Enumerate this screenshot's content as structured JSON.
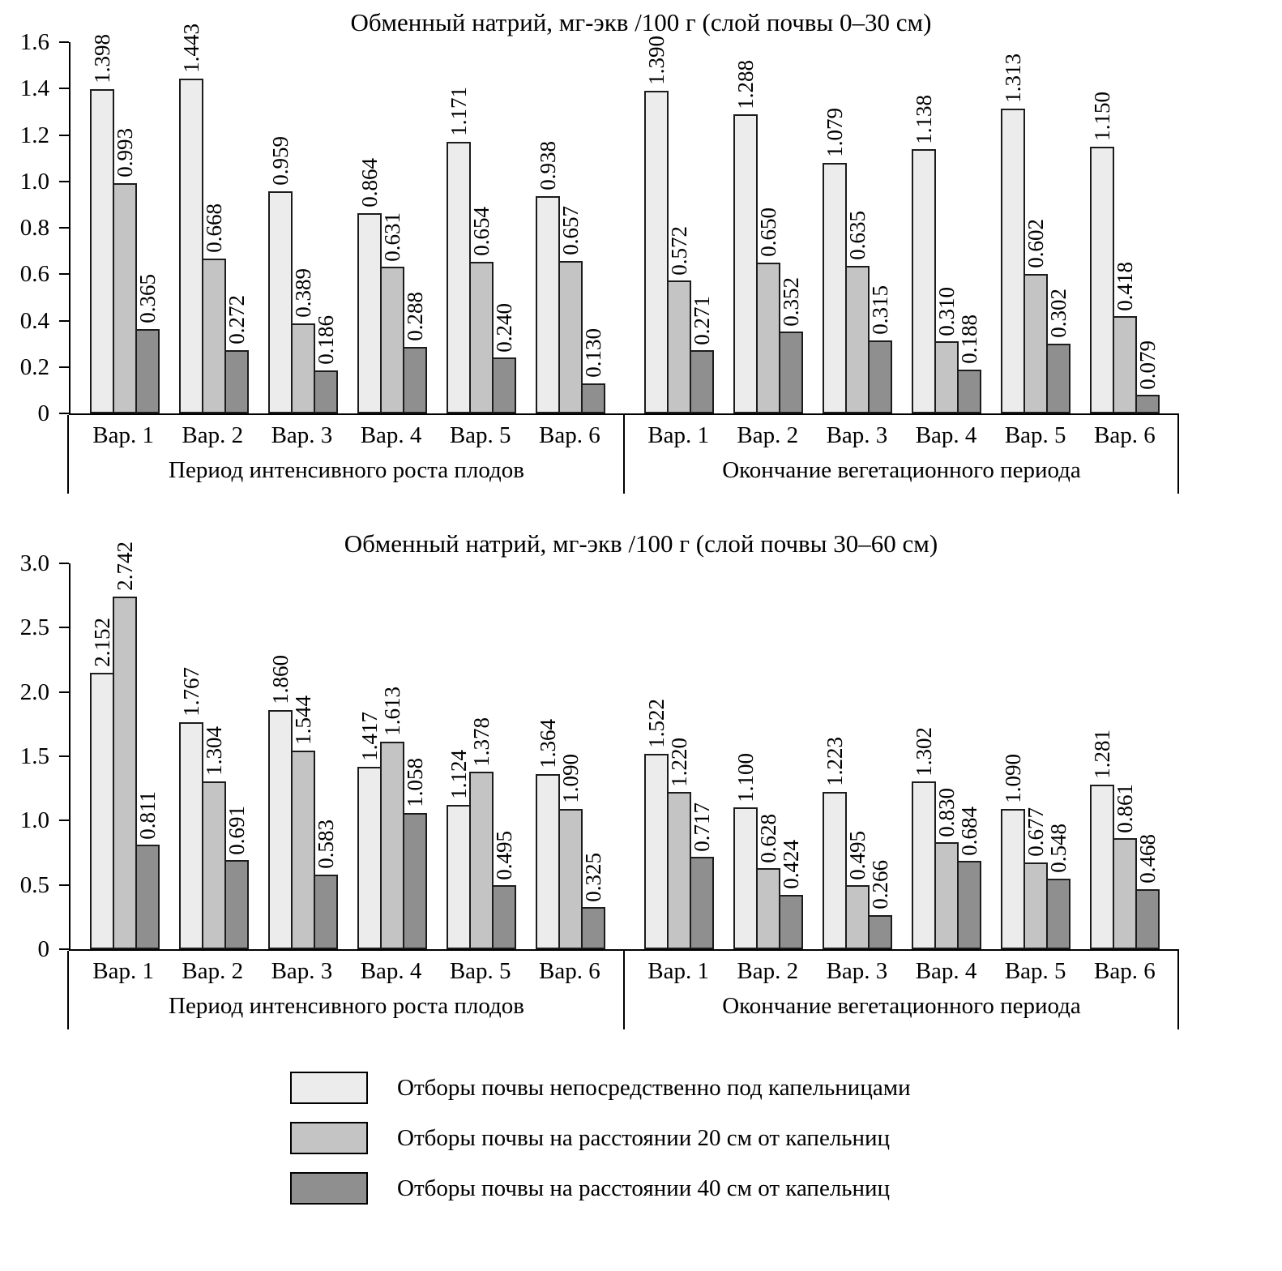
{
  "legend": {
    "items": [
      {
        "label": "Отборы почвы непосредственно под капельницами",
        "color": "#ececec"
      },
      {
        "label": "Отборы почвы на расстоянии 20 см от капельниц",
        "color": "#c4c4c4"
      },
      {
        "label": "Отборы почвы на расстоянии 40 см от капельниц",
        "color": "#8f8f8f"
      }
    ]
  },
  "chart_data": [
    {
      "type": "bar",
      "title": "Обменный натрий, мг-экв /100 г (слой почвы 0–30 см)",
      "ylim": [
        0,
        1.6
      ],
      "yticks": [
        "0",
        "0.2",
        "0.4",
        "0.6",
        "0.8",
        "1.0",
        "1.2",
        "1.4",
        "1.6"
      ],
      "grid": false,
      "legend_position": "bottom",
      "period_groups": [
        {
          "label": "Период интенсивного роста плодов",
          "categories": [
            "Вар. 1",
            "Вар. 2",
            "Вар. 3",
            "Вар. 4",
            "Вар. 5",
            "Вар. 6"
          ],
          "series": [
            {
              "name": "Отборы почвы непосредственно под капельницами",
              "values": [
                1.398,
                1.443,
                0.959,
                0.864,
                1.171,
                0.938
              ]
            },
            {
              "name": "Отборы почвы на расстоянии 20 см от капельниц",
              "values": [
                0.993,
                0.668,
                0.389,
                0.631,
                0.654,
                0.657
              ]
            },
            {
              "name": "Отборы почвы на расстоянии 40 см от капельниц",
              "values": [
                0.365,
                0.272,
                0.186,
                0.288,
                0.24,
                0.13
              ]
            }
          ]
        },
        {
          "label": "Окончание вегетационного периода",
          "categories": [
            "Вар. 1",
            "Вар. 2",
            "Вар. 3",
            "Вар. 4",
            "Вар. 5",
            "Вар. 6"
          ],
          "series": [
            {
              "name": "Отборы почвы непосредственно под капельницами",
              "values": [
                1.39,
                1.288,
                1.079,
                1.138,
                1.313,
                1.15
              ]
            },
            {
              "name": "Отборы почвы на расстоянии 20 см от капельниц",
              "values": [
                0.572,
                0.65,
                0.635,
                0.31,
                0.602,
                0.418
              ]
            },
            {
              "name": "Отборы почвы на расстоянии 40 см от капельниц",
              "values": [
                0.271,
                0.352,
                0.315,
                0.188,
                0.302,
                0.079
              ]
            }
          ]
        }
      ]
    },
    {
      "type": "bar",
      "title": "Обменный натрий, мг-экв /100 г (слой почвы 30–60 см)",
      "ylim": [
        0,
        3.0
      ],
      "yticks": [
        "0",
        "0.5",
        "1.0",
        "1.5",
        "2.0",
        "2.5",
        "3.0"
      ],
      "grid": false,
      "legend_position": "bottom",
      "period_groups": [
        {
          "label": "Период интенсивного роста плодов",
          "categories": [
            "Вар. 1",
            "Вар. 2",
            "Вар. 3",
            "Вар. 4",
            "Вар. 5",
            "Вар. 6"
          ],
          "series": [
            {
              "name": "Отборы почвы непосредственно под капельницами",
              "values": [
                2.152,
                1.767,
                1.86,
                1.417,
                1.124,
                1.364
              ]
            },
            {
              "name": "Отборы почвы на расстоянии 20 см от капельниц",
              "values": [
                2.742,
                1.304,
                1.544,
                1.613,
                1.378,
                1.09
              ]
            },
            {
              "name": "Отборы почвы на расстоянии 40 см от капельниц",
              "values": [
                0.811,
                0.691,
                0.583,
                1.058,
                0.495,
                0.325
              ]
            }
          ]
        },
        {
          "label": "Окончание вегетационного периода",
          "categories": [
            "Вар. 1",
            "Вар. 2",
            "Вар. 3",
            "Вар. 4",
            "Вар. 5",
            "Вар. 6"
          ],
          "series": [
            {
              "name": "Отборы почвы непосредственно под капельницами",
              "values": [
                1.522,
                1.1,
                1.223,
                1.302,
                1.09,
                1.281
              ]
            },
            {
              "name": "Отборы почвы на расстоянии 20 см от капельниц",
              "values": [
                1.22,
                0.628,
                0.495,
                0.83,
                0.677,
                0.861
              ]
            },
            {
              "name": "Отборы почвы на расстоянии 40 см от капельниц",
              "values": [
                0.717,
                0.424,
                0.266,
                0.684,
                0.548,
                0.468
              ]
            }
          ]
        }
      ]
    }
  ]
}
